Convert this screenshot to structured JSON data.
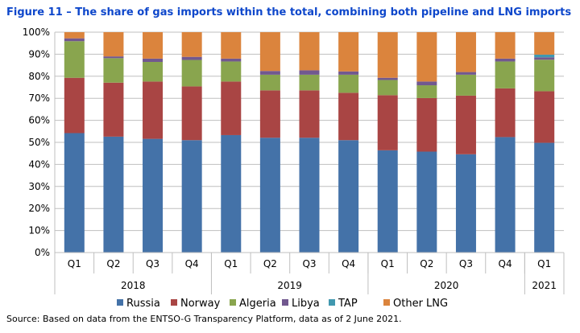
{
  "chart_data": {
    "type": "bar",
    "stacked": true,
    "title": "Figure 11 – The share of gas imports within the total, combining both pipeline and LNG imports",
    "source": "Source: Based on data from the ENTSO-G Transparency Platform, data as of 2 June 2021.",
    "categories": [
      "Q1",
      "Q2",
      "Q3",
      "Q4",
      "Q1",
      "Q2",
      "Q3",
      "Q4",
      "Q1",
      "Q2",
      "Q3",
      "Q4",
      "Q1"
    ],
    "year_groups": [
      {
        "label": "2018",
        "count": 4
      },
      {
        "label": "2019",
        "count": 4
      },
      {
        "label": "2020",
        "count": 4
      },
      {
        "label": "2021",
        "count": 1
      }
    ],
    "ylim": [
      0,
      100
    ],
    "yticks": [
      "0%",
      "10%",
      "20%",
      "30%",
      "40%",
      "50%",
      "60%",
      "70%",
      "80%",
      "90%",
      "100%"
    ],
    "grid": true,
    "legend_position": "bottom",
    "series": [
      {
        "name": "Russia",
        "color": "#4472a8",
        "values": [
          54.2,
          52.6,
          51.6,
          51.0,
          53.3,
          52.1,
          52.1,
          51.0,
          46.4,
          45.8,
          44.6,
          52.4,
          49.8
        ]
      },
      {
        "name": "Norway",
        "color": "#a94544",
        "values": [
          25.1,
          24.5,
          26.0,
          24.4,
          24.3,
          21.5,
          21.5,
          21.5,
          25.0,
          24.3,
          26.6,
          22.1,
          23.4
        ]
      },
      {
        "name": "Algeria",
        "color": "#89a54e",
        "values": [
          16.6,
          11.1,
          8.9,
          12.0,
          9.1,
          7.1,
          7.1,
          8.2,
          6.9,
          5.8,
          9.5,
          12.2,
          14.3
        ]
      },
      {
        "name": "Libya",
        "color": "#71588f",
        "values": [
          1.3,
          0.8,
          1.5,
          1.4,
          1.3,
          1.7,
          2.0,
          1.5,
          1.0,
          1.7,
          1.2,
          1.3,
          1.1
        ]
      },
      {
        "name": "TAP",
        "color": "#4198af",
        "values": [
          0,
          0,
          0,
          0,
          0,
          0,
          0,
          0,
          0,
          0,
          0,
          0,
          1.2
        ]
      },
      {
        "name": "Other LNG",
        "color": "#db843d",
        "values": [
          2.8,
          11.0,
          12.0,
          11.2,
          12.0,
          17.6,
          17.3,
          17.8,
          20.7,
          22.4,
          18.1,
          12.0,
          10.2
        ]
      }
    ]
  }
}
